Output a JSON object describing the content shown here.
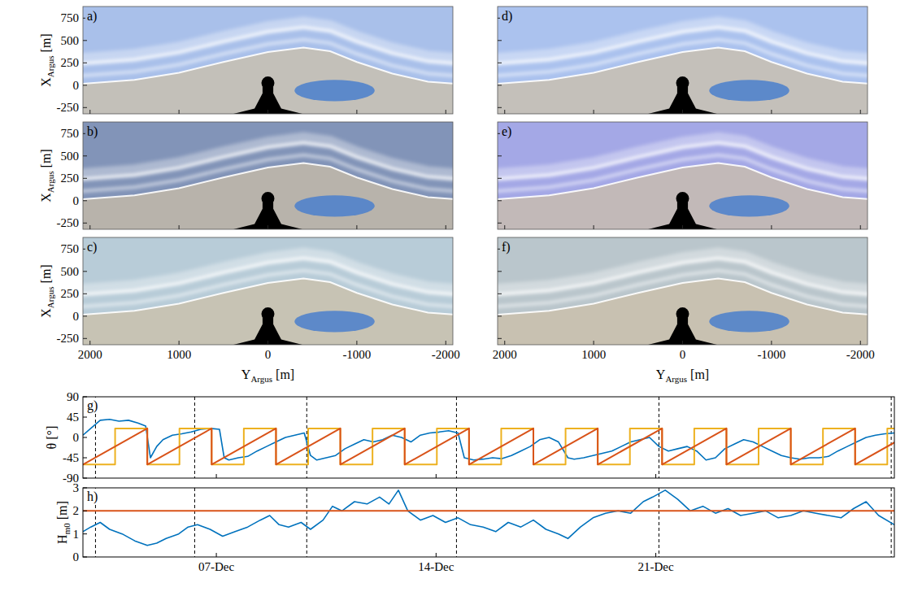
{
  "chart_data": [
    {
      "type": "image",
      "panel_label": "a)",
      "color": "#a9c0ea",
      "ylabel": {
        "main": "X",
        "subscript": "Argus",
        "unit": "[m]"
      },
      "xlim": [
        2080,
        -2080
      ],
      "ylim": [
        -320,
        880
      ],
      "xticks": [
        2000,
        1000,
        0,
        -1000,
        -2000
      ],
      "yticks": [
        750,
        500,
        250,
        0,
        -250
      ],
      "tick_labels": "y"
    },
    {
      "type": "image",
      "panel_label": "b)",
      "color": "#8294b8",
      "ylabel": {
        "main": "X",
        "subscript": "Argus",
        "unit": "[m]"
      },
      "xlim": [
        2080,
        -2080
      ],
      "ylim": [
        -320,
        880
      ],
      "xticks": [
        2000,
        1000,
        0,
        -1000,
        -2000
      ],
      "yticks": [
        750,
        500,
        250,
        0,
        -250
      ],
      "tick_labels": "y"
    },
    {
      "type": "image",
      "panel_label": "c)",
      "color": "#b8ccd8",
      "ylabel": {
        "main": "X",
        "subscript": "Argus",
        "unit": "[m]"
      },
      "xlabel": {
        "main": "Y",
        "subscript": "Argus",
        "unit": "[m]"
      },
      "xlim": [
        2080,
        -2080
      ],
      "ylim": [
        -320,
        880
      ],
      "xticks": [
        2000,
        1000,
        0,
        -1000,
        -2000
      ],
      "yticks": [
        750,
        500,
        250,
        0,
        -250
      ]
    },
    {
      "type": "image",
      "panel_label": "d)",
      "color": "#abc2ee",
      "xlim": [
        2080,
        -2080
      ],
      "ylim": [
        -320,
        880
      ],
      "xticks": [
        2000,
        1000,
        0,
        -1000,
        -2000
      ],
      "yticks": [
        750,
        500,
        250,
        0,
        -250
      ],
      "tick_labels": false
    },
    {
      "type": "image",
      "panel_label": "e)",
      "color": "#a4a8e6",
      "xlim": [
        2080,
        -2080
      ],
      "ylim": [
        -320,
        880
      ],
      "xticks": [
        2000,
        1000,
        0,
        -1000,
        -2000
      ],
      "yticks": [
        750,
        500,
        250,
        0,
        -250
      ],
      "tick_labels": false
    },
    {
      "type": "image",
      "panel_label": "f)",
      "color": "#bac6cc",
      "xlabel": {
        "main": "Y",
        "subscript": "Argus",
        "unit": "[m]"
      },
      "xlim": [
        2080,
        -2080
      ],
      "ylim": [
        -320,
        880
      ],
      "xticks": [
        2000,
        1000,
        0,
        -1000,
        -2000
      ],
      "yticks": [
        750,
        500,
        250,
        0,
        -250
      ],
      "tick_labels": "x"
    },
    {
      "type": "line",
      "panel_label": "g)",
      "ylabel": {
        "main": "θ",
        "unit": "[°]"
      },
      "xlim": [
        2.75,
        28.6
      ],
      "ylim": [
        -90,
        90
      ],
      "xticks": [
        {
          "value": 7,
          "label": "07-Dec"
        },
        {
          "value": 14,
          "label": "14-Dec"
        },
        {
          "value": 21,
          "label": "21-Dec"
        }
      ],
      "yticks": [
        -90,
        -45,
        0,
        45,
        90
      ],
      "tick_labels": "y",
      "vertical_lines": [
        3.15,
        6.31,
        9.88,
        14.65,
        21.1,
        28.5
      ],
      "series": [
        {
          "color": "#0072BD",
          "x": [
            2.75,
            3.0,
            3.3,
            3.6,
            3.9,
            4.2,
            4.5,
            4.75,
            4.9,
            5.1,
            5.3,
            5.6,
            5.9,
            6.2,
            6.5,
            6.8,
            7.1,
            7.25,
            7.4,
            7.7,
            8.0,
            8.3,
            8.6,
            8.9,
            9.2,
            9.5,
            9.8,
            10.0,
            10.2,
            10.5,
            10.8,
            11.1,
            11.4,
            11.7,
            12.0,
            12.3,
            12.6,
            12.9,
            13.2,
            13.5,
            13.8,
            14.1,
            14.4,
            14.7,
            14.9,
            15.2,
            15.5,
            15.8,
            16.1,
            16.4,
            16.7,
            17.0,
            17.3,
            17.6,
            17.9,
            18.2,
            18.4,
            18.7,
            19.0,
            19.3,
            19.6,
            19.9,
            20.2,
            20.5,
            20.8,
            21.1,
            21.4,
            21.7,
            22.0,
            22.3,
            22.6,
            22.9,
            23.2,
            23.5,
            23.8,
            24.1,
            24.4,
            24.7,
            25.0,
            25.3,
            25.6,
            25.9,
            26.2,
            26.5,
            26.8,
            27.1,
            27.4,
            27.7,
            28.0,
            28.3,
            28.6
          ],
          "values": [
            5,
            20,
            38,
            40,
            36,
            38,
            32,
            25,
            -45,
            -20,
            -5,
            5,
            8,
            12,
            18,
            20,
            18,
            -45,
            -50,
            -45,
            -42,
            -30,
            -20,
            -10,
            0,
            5,
            10,
            -40,
            -50,
            -45,
            -40,
            -25,
            -15,
            -5,
            -10,
            -5,
            5,
            0,
            -10,
            5,
            10,
            12,
            15,
            10,
            -45,
            -50,
            -48,
            -45,
            -47,
            -40,
            -30,
            -20,
            -5,
            0,
            -10,
            -45,
            -48,
            -45,
            -40,
            -35,
            -30,
            -20,
            -10,
            -5,
            0,
            -20,
            -30,
            -25,
            -20,
            -30,
            -50,
            -45,
            -25,
            -15,
            -5,
            -10,
            -20,
            -30,
            -40,
            -45,
            -48,
            -45,
            -45,
            -42,
            -30,
            -20,
            -10,
            0,
            5,
            8,
            10
          ]
        },
        {
          "color": "#EDB120",
          "x": [
            2.75,
            3.775,
            3.775,
            4.8,
            4.8,
            5.825,
            5.825,
            6.85,
            6.85,
            7.875,
            7.875,
            8.9,
            8.9,
            9.925,
            9.925,
            10.95,
            10.95,
            11.975,
            11.975,
            13,
            13,
            14.025,
            14.025,
            15.05,
            15.05,
            16.075,
            16.075,
            17.1,
            17.1,
            18.125,
            18.125,
            19.15,
            19.15,
            20.175,
            20.175,
            21.2,
            21.2,
            22.225,
            22.225,
            23.25,
            23.25,
            24.275,
            24.275,
            25.3,
            25.3,
            26.325,
            26.325,
            27.35,
            27.35,
            28.375,
            28.375,
            29.4,
            29.4
          ],
          "values": [
            -60,
            -60,
            20,
            20,
            -60,
            -60,
            20,
            20,
            -60,
            -60,
            20,
            20,
            -60,
            -60,
            20,
            20,
            -60,
            -60,
            20,
            20,
            -60,
            -60,
            20,
            20,
            -60,
            -60,
            20,
            20,
            -60,
            -60,
            20,
            20,
            -60,
            -60,
            20,
            20,
            -60,
            -60,
            20,
            20,
            -60,
            -60,
            20,
            20,
            -60,
            -60,
            20,
            20,
            -60,
            -60,
            20,
            20,
            -60
          ]
        },
        {
          "color": "#D95319",
          "x": [
            2.75,
            4.8,
            4.8,
            6.85,
            6.85,
            8.9,
            8.9,
            10.95,
            10.95,
            13,
            13,
            15.05,
            15.05,
            17.1,
            17.1,
            19.15,
            19.15,
            21.2,
            21.2,
            23.25,
            23.25,
            25.3,
            25.3,
            27.35,
            27.35,
            29.4
          ],
          "values": [
            -60,
            20,
            -60,
            20,
            -60,
            20,
            -60,
            20,
            -60,
            20,
            -60,
            20,
            -60,
            20,
            -60,
            20,
            -60,
            20,
            -60,
            20,
            -60,
            20,
            -60,
            20,
            -60,
            20
          ]
        }
      ]
    },
    {
      "type": "line",
      "panel_label": "h)",
      "ylabel": {
        "main": "H",
        "subscript": "m0",
        "unit": "[m]"
      },
      "xlim": [
        2.75,
        28.6
      ],
      "ylim": [
        0,
        3
      ],
      "xticks": [
        {
          "value": 7,
          "label": "07-Dec"
        },
        {
          "value": 14,
          "label": "14-Dec"
        },
        {
          "value": 21,
          "label": "21-Dec"
        }
      ],
      "yticks": [
        0,
        1,
        2,
        3
      ],
      "vertical_lines": [
        3.15,
        6.31,
        9.88,
        14.65,
        21.1,
        28.5
      ],
      "series": [
        {
          "color": "#0072BD",
          "x": [
            2.75,
            3.0,
            3.3,
            3.6,
            4.0,
            4.4,
            4.8,
            5.1,
            5.4,
            5.8,
            6.1,
            6.4,
            6.8,
            7.2,
            7.6,
            8.0,
            8.4,
            8.7,
            9.0,
            9.3,
            9.7,
            10.0,
            10.4,
            10.7,
            11.0,
            11.4,
            11.8,
            12.2,
            12.5,
            12.8,
            13.1,
            13.5,
            13.9,
            14.3,
            14.7,
            15.1,
            15.5,
            15.9,
            16.3,
            16.7,
            17.1,
            17.5,
            17.9,
            18.2,
            18.6,
            19.0,
            19.4,
            19.8,
            20.2,
            20.6,
            20.9,
            21.3,
            21.7,
            22.1,
            22.5,
            22.9,
            23.3,
            23.7,
            24.1,
            24.5,
            24.9,
            25.3,
            25.7,
            26.1,
            26.5,
            26.9,
            27.3,
            27.7,
            28.1,
            28.6
          ],
          "values": [
            1.1,
            1.3,
            1.5,
            1.2,
            1.0,
            0.7,
            0.5,
            0.6,
            0.8,
            1.0,
            1.3,
            1.4,
            1.2,
            0.9,
            1.1,
            1.3,
            1.6,
            1.8,
            1.4,
            1.3,
            1.5,
            1.2,
            1.6,
            2.2,
            2.0,
            2.4,
            2.3,
            2.6,
            2.3,
            2.9,
            2.0,
            1.6,
            1.8,
            1.5,
            1.7,
            1.4,
            1.3,
            1.1,
            1.5,
            1.3,
            1.6,
            1.2,
            1.0,
            0.8,
            1.3,
            1.7,
            1.9,
            2.0,
            1.9,
            2.4,
            2.6,
            2.9,
            2.5,
            2.0,
            2.2,
            1.9,
            2.1,
            1.8,
            1.9,
            2.0,
            1.7,
            1.8,
            2.0,
            1.9,
            1.8,
            1.7,
            2.1,
            2.4,
            1.8,
            1.4
          ]
        },
        {
          "color": "#D95319",
          "x": [
            2.75,
            28.6
          ],
          "values": [
            2,
            2
          ]
        }
      ]
    }
  ]
}
